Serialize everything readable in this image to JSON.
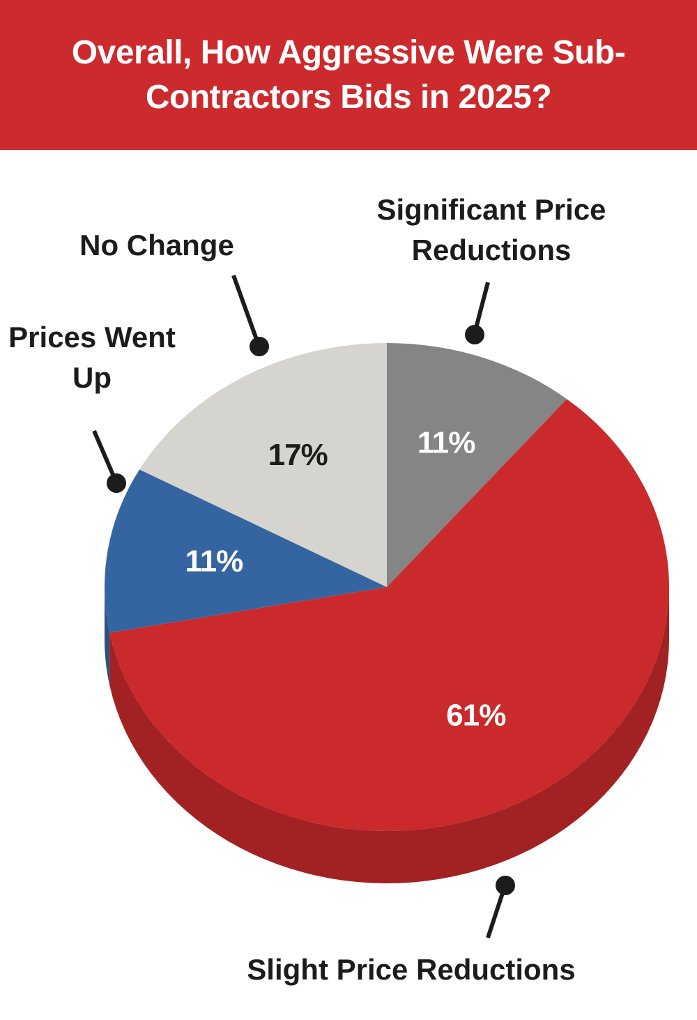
{
  "chart_data": {
    "type": "pie",
    "title": "Overall, How Aggressive Were Sub-Contractors Bids in 2025?",
    "categories": [
      "Significant Price Reductions",
      "Slight Price Reductions",
      "Prices Went Up",
      "No Change"
    ],
    "values": [
      11,
      61,
      11,
      17
    ],
    "value_labels": [
      "11%",
      "61%",
      "11%",
      "17%"
    ],
    "colors": [
      "#858585",
      "#cb2a2c",
      "#3565a0",
      "#d5d4cf"
    ]
  }
}
